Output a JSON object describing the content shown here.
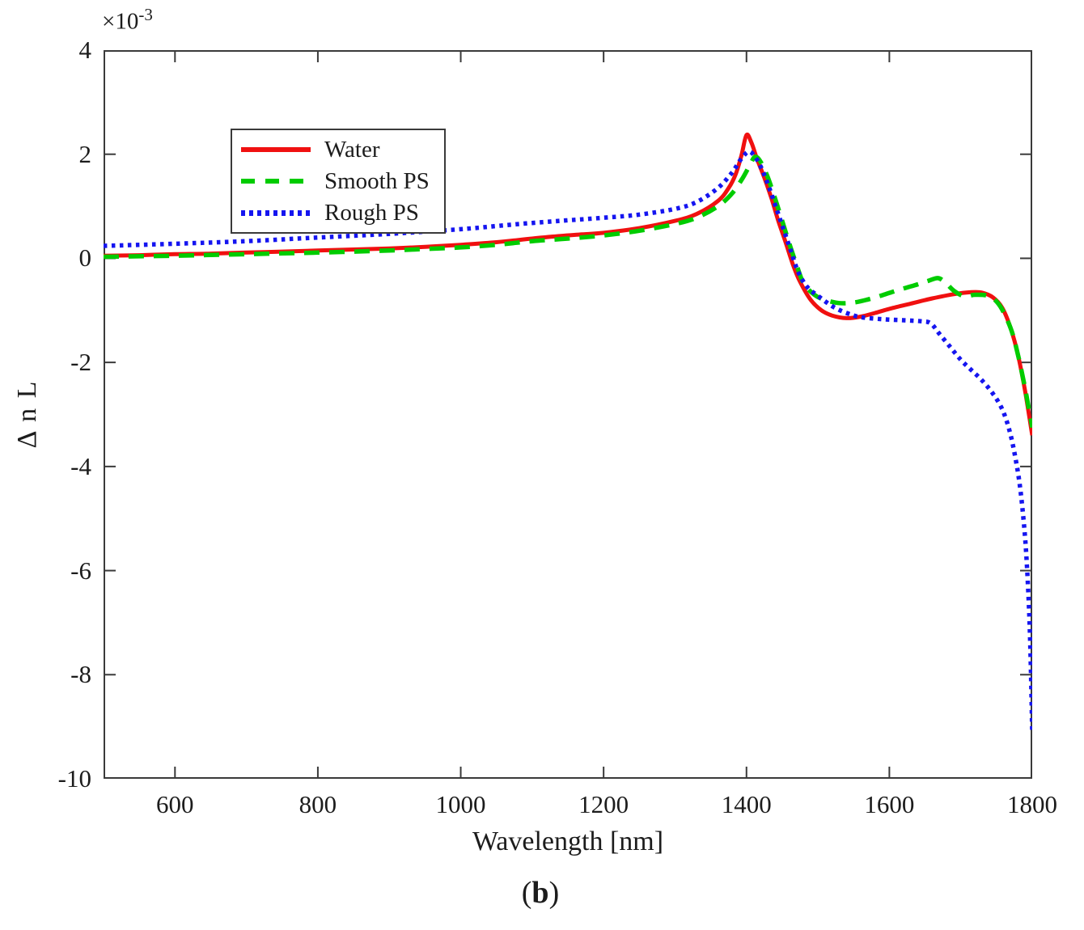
{
  "figure": {
    "caption": {
      "open": "(",
      "letter": "b",
      "close": ")"
    }
  },
  "axes": {
    "box_color": "#3a3a3a",
    "text_color": "#1c1c1c",
    "x_label": "Wavelength [nm]",
    "y_label": "Δ n L",
    "y_exponent_base": "×10",
    "y_exponent_power": "-3",
    "x_ticks": [
      600,
      800,
      1000,
      1200,
      1400,
      1600,
      1800
    ],
    "y_ticks": [
      4,
      2,
      0,
      -2,
      -4,
      -6,
      -8,
      -10
    ],
    "x_range": [
      500,
      1800
    ],
    "y_range": [
      -10,
      4
    ]
  },
  "legend": {
    "position": "top-left",
    "items": [
      {
        "label": "Water",
        "color": "#f01010",
        "style": "solid"
      },
      {
        "label": "Smooth PS",
        "color": "#00cc00",
        "style": "dashed"
      },
      {
        "label": "Rough PS",
        "color": "#1515f0",
        "style": "dotted"
      }
    ]
  },
  "chart_data": {
    "type": "line",
    "title": "",
    "xlabel": "Wavelength [nm]",
    "ylabel": "Δ n L",
    "y_units": "1e-3",
    "xlim": [
      500,
      1800
    ],
    "ylim_e3": [
      -10,
      4
    ],
    "grid": false,
    "series": [
      {
        "name": "Water",
        "color": "#f01010",
        "line_style": "solid",
        "points": [
          [
            500,
            0.05
          ],
          [
            550,
            0.06
          ],
          [
            600,
            0.08
          ],
          [
            650,
            0.09
          ],
          [
            700,
            0.11
          ],
          [
            750,
            0.13
          ],
          [
            800,
            0.15
          ],
          [
            850,
            0.17
          ],
          [
            900,
            0.19
          ],
          [
            950,
            0.22
          ],
          [
            1000,
            0.26
          ],
          [
            1050,
            0.31
          ],
          [
            1100,
            0.38
          ],
          [
            1140,
            0.43
          ],
          [
            1170,
            0.46
          ],
          [
            1200,
            0.49
          ],
          [
            1250,
            0.58
          ],
          [
            1300,
            0.72
          ],
          [
            1330,
            0.85
          ],
          [
            1360,
            1.1
          ],
          [
            1375,
            1.35
          ],
          [
            1385,
            1.62
          ],
          [
            1393,
            1.98
          ],
          [
            1400,
            2.37
          ],
          [
            1407,
            2.22
          ],
          [
            1415,
            1.9
          ],
          [
            1425,
            1.55
          ],
          [
            1435,
            1.15
          ],
          [
            1445,
            0.7
          ],
          [
            1455,
            0.3
          ],
          [
            1465,
            -0.12
          ],
          [
            1475,
            -0.45
          ],
          [
            1490,
            -0.8
          ],
          [
            1505,
            -1.0
          ],
          [
            1520,
            -1.1
          ],
          [
            1540,
            -1.15
          ],
          [
            1560,
            -1.12
          ],
          [
            1580,
            -1.05
          ],
          [
            1600,
            -0.97
          ],
          [
            1630,
            -0.87
          ],
          [
            1660,
            -0.77
          ],
          [
            1690,
            -0.69
          ],
          [
            1715,
            -0.65
          ],
          [
            1730,
            -0.66
          ],
          [
            1745,
            -0.75
          ],
          [
            1758,
            -0.95
          ],
          [
            1770,
            -1.35
          ],
          [
            1780,
            -1.85
          ],
          [
            1790,
            -2.55
          ],
          [
            1800,
            -3.4
          ]
        ]
      },
      {
        "name": "Smooth PS",
        "color": "#00cc00",
        "line_style": "dashed",
        "points": [
          [
            500,
            0.03
          ],
          [
            600,
            0.05
          ],
          [
            700,
            0.08
          ],
          [
            800,
            0.11
          ],
          [
            900,
            0.15
          ],
          [
            950,
            0.18
          ],
          [
            1000,
            0.21
          ],
          [
            1050,
            0.26
          ],
          [
            1100,
            0.33
          ],
          [
            1150,
            0.38
          ],
          [
            1200,
            0.44
          ],
          [
            1250,
            0.53
          ],
          [
            1300,
            0.66
          ],
          [
            1330,
            0.78
          ],
          [
            1360,
            1.0
          ],
          [
            1380,
            1.25
          ],
          [
            1395,
            1.55
          ],
          [
            1405,
            1.8
          ],
          [
            1412,
            1.95
          ],
          [
            1420,
            1.85
          ],
          [
            1430,
            1.55
          ],
          [
            1440,
            1.15
          ],
          [
            1450,
            0.72
          ],
          [
            1460,
            0.28
          ],
          [
            1470,
            -0.12
          ],
          [
            1480,
            -0.48
          ],
          [
            1495,
            -0.7
          ],
          [
            1510,
            -0.8
          ],
          [
            1530,
            -0.86
          ],
          [
            1550,
            -0.85
          ],
          [
            1570,
            -0.79
          ],
          [
            1590,
            -0.71
          ],
          [
            1610,
            -0.62
          ],
          [
            1635,
            -0.52
          ],
          [
            1655,
            -0.43
          ],
          [
            1668,
            -0.38
          ],
          [
            1678,
            -0.46
          ],
          [
            1690,
            -0.62
          ],
          [
            1705,
            -0.73
          ],
          [
            1720,
            -0.7
          ],
          [
            1740,
            -0.73
          ],
          [
            1755,
            -0.92
          ],
          [
            1770,
            -1.35
          ],
          [
            1780,
            -1.85
          ],
          [
            1790,
            -2.5
          ],
          [
            1800,
            -3.25
          ]
        ]
      },
      {
        "name": "Rough PS",
        "color": "#1515f0",
        "line_style": "dotted",
        "points": [
          [
            500,
            0.24
          ],
          [
            600,
            0.28
          ],
          [
            700,
            0.33
          ],
          [
            800,
            0.4
          ],
          [
            900,
            0.47
          ],
          [
            1000,
            0.56
          ],
          [
            1050,
            0.62
          ],
          [
            1100,
            0.68
          ],
          [
            1150,
            0.73
          ],
          [
            1200,
            0.78
          ],
          [
            1250,
            0.84
          ],
          [
            1300,
            0.95
          ],
          [
            1330,
            1.08
          ],
          [
            1360,
            1.35
          ],
          [
            1380,
            1.65
          ],
          [
            1392,
            1.9
          ],
          [
            1403,
            2.05
          ],
          [
            1412,
            1.95
          ],
          [
            1422,
            1.7
          ],
          [
            1432,
            1.35
          ],
          [
            1442,
            0.95
          ],
          [
            1452,
            0.55
          ],
          [
            1462,
            0.15
          ],
          [
            1472,
            -0.25
          ],
          [
            1485,
            -0.55
          ],
          [
            1500,
            -0.72
          ],
          [
            1520,
            -0.92
          ],
          [
            1540,
            -1.05
          ],
          [
            1560,
            -1.13
          ],
          [
            1590,
            -1.17
          ],
          [
            1620,
            -1.19
          ],
          [
            1645,
            -1.21
          ],
          [
            1658,
            -1.25
          ],
          [
            1670,
            -1.45
          ],
          [
            1685,
            -1.7
          ],
          [
            1700,
            -1.95
          ],
          [
            1715,
            -2.15
          ],
          [
            1730,
            -2.35
          ],
          [
            1745,
            -2.6
          ],
          [
            1758,
            -2.9
          ],
          [
            1768,
            -3.3
          ],
          [
            1776,
            -3.8
          ],
          [
            1783,
            -4.4
          ],
          [
            1789,
            -5.2
          ],
          [
            1793,
            -6.0
          ],
          [
            1796,
            -6.9
          ],
          [
            1798,
            -7.8
          ],
          [
            1800,
            -9.1
          ]
        ]
      }
    ]
  }
}
